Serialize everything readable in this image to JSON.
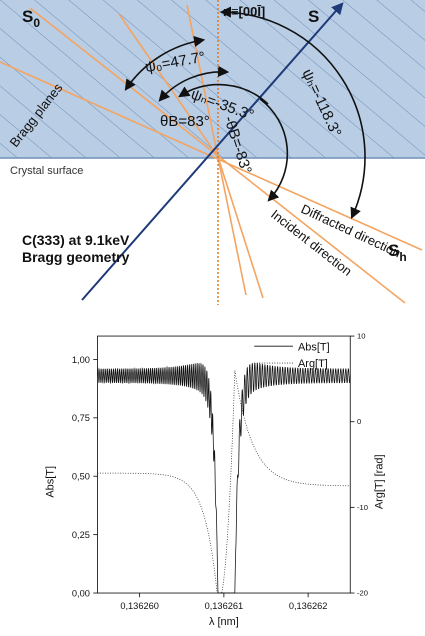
{
  "geometry": {
    "labels": {
      "s0": "S",
      "s0_sub": "0",
      "s": "S",
      "sh": "S",
      "sh_sub": "h",
      "normal": "n≡[00Ī]",
      "psi0": "ψ₀=47.7°",
      "psin": "ψₙ=-35.3°",
      "psih": "ψₕ=-118.3°",
      "thetaB": "θB=83°",
      "minus_thetaB": "-θB=-83°",
      "bragg_planes": "Bragg planes",
      "crystal_surface": "Crystal surface",
      "diffracted": "Diffracted direction",
      "incident": "Incident direction",
      "reflection_line1": "C(333) at 9.1keV",
      "reflection_line2": "Bragg geometry"
    },
    "colors": {
      "crystal_fill": "#b9cde5",
      "hatch": "#6f8fb8",
      "beams": "#f4a460",
      "s_vector": "#1f3a78",
      "arrows": "#111111"
    }
  },
  "chart_data": {
    "type": "line",
    "x_label": "λ [nm]",
    "y_label_left": "Abs[T]",
    "y_label_right": "Arg[T] [rad]",
    "x_range": [
      0.1362595,
      0.1362625
    ],
    "x_ticks": [
      "0,136260",
      "0,136261",
      "0,136262"
    ],
    "x_tick_values": [
      0.13626,
      0.136261,
      0.136262
    ],
    "y_left_range": [
      0,
      1.1
    ],
    "y_left_ticks": [
      "0,00",
      "0,25",
      "0,50",
      "0,75",
      "1,00"
    ],
    "y_left_tick_values": [
      0,
      0.25,
      0.5,
      0.75,
      1.0
    ],
    "y_right_range": [
      -20,
      10
    ],
    "y_right_ticks": [
      "-20",
      "-10",
      "0",
      "10"
    ],
    "y_right_tick_values": [
      -20,
      -10,
      0,
      10
    ],
    "legend": {
      "placement": "top-right"
    },
    "series": [
      {
        "name": "Abs[T]",
        "axis": "left",
        "style": "solid",
        "baseline": 0.93,
        "oscillation_amplitude": 0.03,
        "stop_band": [
          0.13626093,
          0.13626113
        ]
      },
      {
        "name": "Arg[T]",
        "axis": "right",
        "style": "dotted",
        "left_level": -6.0,
        "right_level": -7.5,
        "min": -21,
        "max": 6
      }
    ]
  }
}
